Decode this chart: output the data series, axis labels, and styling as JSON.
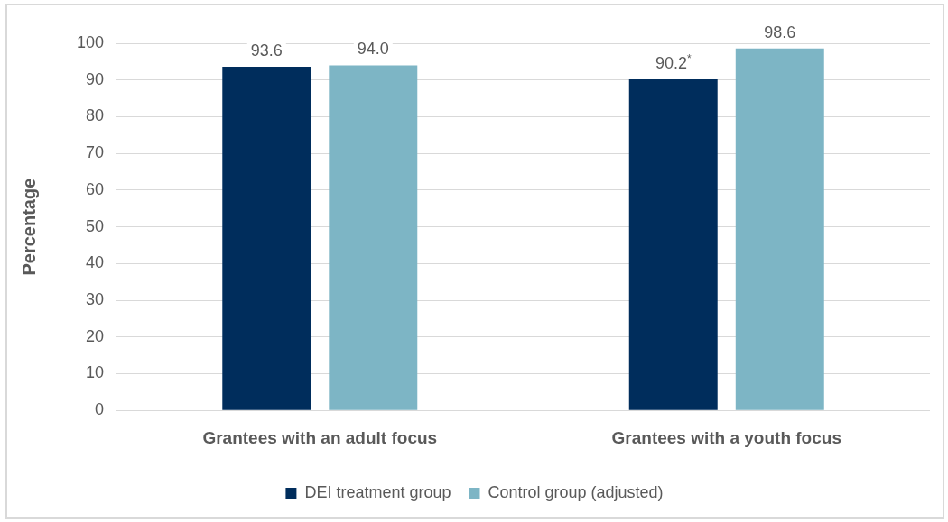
{
  "chart_data": {
    "type": "bar",
    "ylabel": "Percentage",
    "categories": [
      "Grantees with an adult focus",
      "Grantees with a youth focus"
    ],
    "series": [
      {
        "name": "DEI treatment group",
        "color": "#002d5c",
        "values": [
          93.6,
          90.2
        ],
        "value_labels": [
          "93.6",
          "90.2$^{*}$"
        ]
      },
      {
        "name": "Control group (adjusted)",
        "color": "#7db5c5",
        "values": [
          94.0,
          98.6
        ],
        "value_labels": [
          "94.0",
          "98.6"
        ]
      }
    ],
    "ylim": [
      0,
      100
    ],
    "yticks": [
      0,
      10,
      20,
      30,
      40,
      50,
      60,
      70,
      80,
      90,
      100
    ],
    "grid": "y",
    "legend": "bottom"
  }
}
